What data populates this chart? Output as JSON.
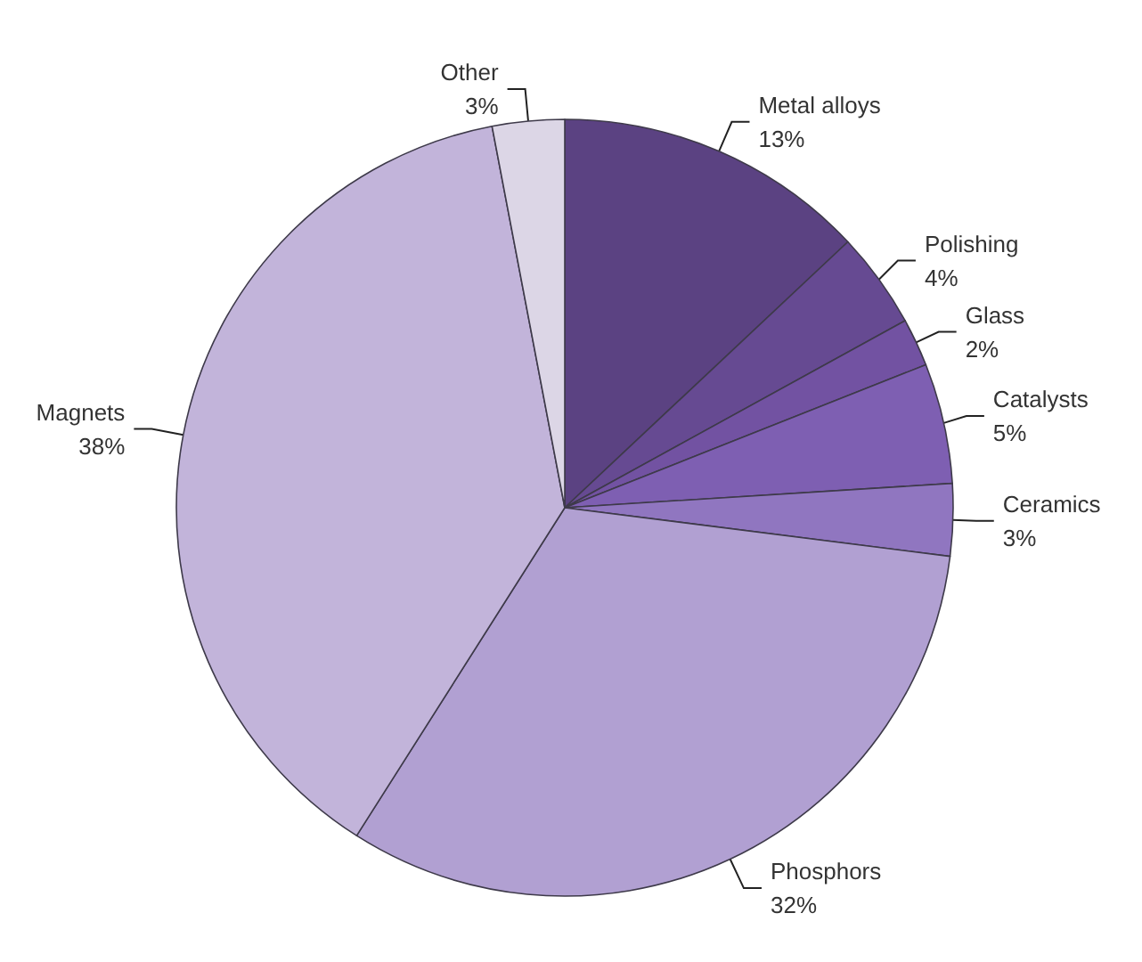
{
  "chart_data": {
    "type": "pie",
    "categories": [
      "Metal alloys",
      "Polishing",
      "Glass",
      "Catalysts",
      "Ceramics",
      "Phosphors",
      "Magnets",
      "Other"
    ],
    "values": [
      13,
      4,
      2,
      5,
      3,
      32,
      38,
      3
    ],
    "value_labels": [
      "13%",
      "4%",
      "2%",
      "5%",
      "3%",
      "32%",
      "38%",
      "3%"
    ],
    "colors": [
      "#5b4282",
      "#664a92",
      "#7252a2",
      "#7e5fb2",
      "#9076c0",
      "#b1a0d2",
      "#c2b4da",
      "#dcd6e6"
    ]
  }
}
